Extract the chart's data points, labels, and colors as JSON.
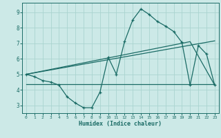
{
  "xlabel": "Humidex (Indice chaleur)",
  "bg_color": "#cce9e7",
  "grid_color": "#aad4d0",
  "line_color": "#1a6b65",
  "xlim": [
    -0.5,
    23.5
  ],
  "ylim": [
    2.5,
    9.6
  ],
  "yticks": [
    3,
    4,
    5,
    6,
    7,
    8,
    9
  ],
  "xticks": [
    0,
    1,
    2,
    3,
    4,
    5,
    6,
    7,
    8,
    9,
    10,
    11,
    12,
    13,
    14,
    15,
    16,
    17,
    18,
    19,
    20,
    21,
    22,
    23
  ],
  "line1_x": [
    0,
    1,
    2,
    3,
    4,
    5,
    6,
    7,
    8,
    9,
    10,
    11,
    12,
    13,
    14,
    15,
    16,
    17,
    18,
    19,
    20,
    21,
    22,
    23
  ],
  "line1_y": [
    5.0,
    4.85,
    4.6,
    4.5,
    4.3,
    3.55,
    3.15,
    2.85,
    2.85,
    3.85,
    6.1,
    5.0,
    7.1,
    8.5,
    9.2,
    8.85,
    8.4,
    8.1,
    7.75,
    7.05,
    4.3,
    6.85,
    6.3,
    4.3
  ],
  "line2_x": [
    0,
    2,
    23
  ],
  "line2_y": [
    4.35,
    4.35,
    4.35
  ],
  "line3_x": [
    0,
    23
  ],
  "line3_y": [
    5.0,
    7.15
  ],
  "line4_x": [
    0,
    20,
    23
  ],
  "line4_y": [
    5.0,
    7.1,
    4.3
  ]
}
